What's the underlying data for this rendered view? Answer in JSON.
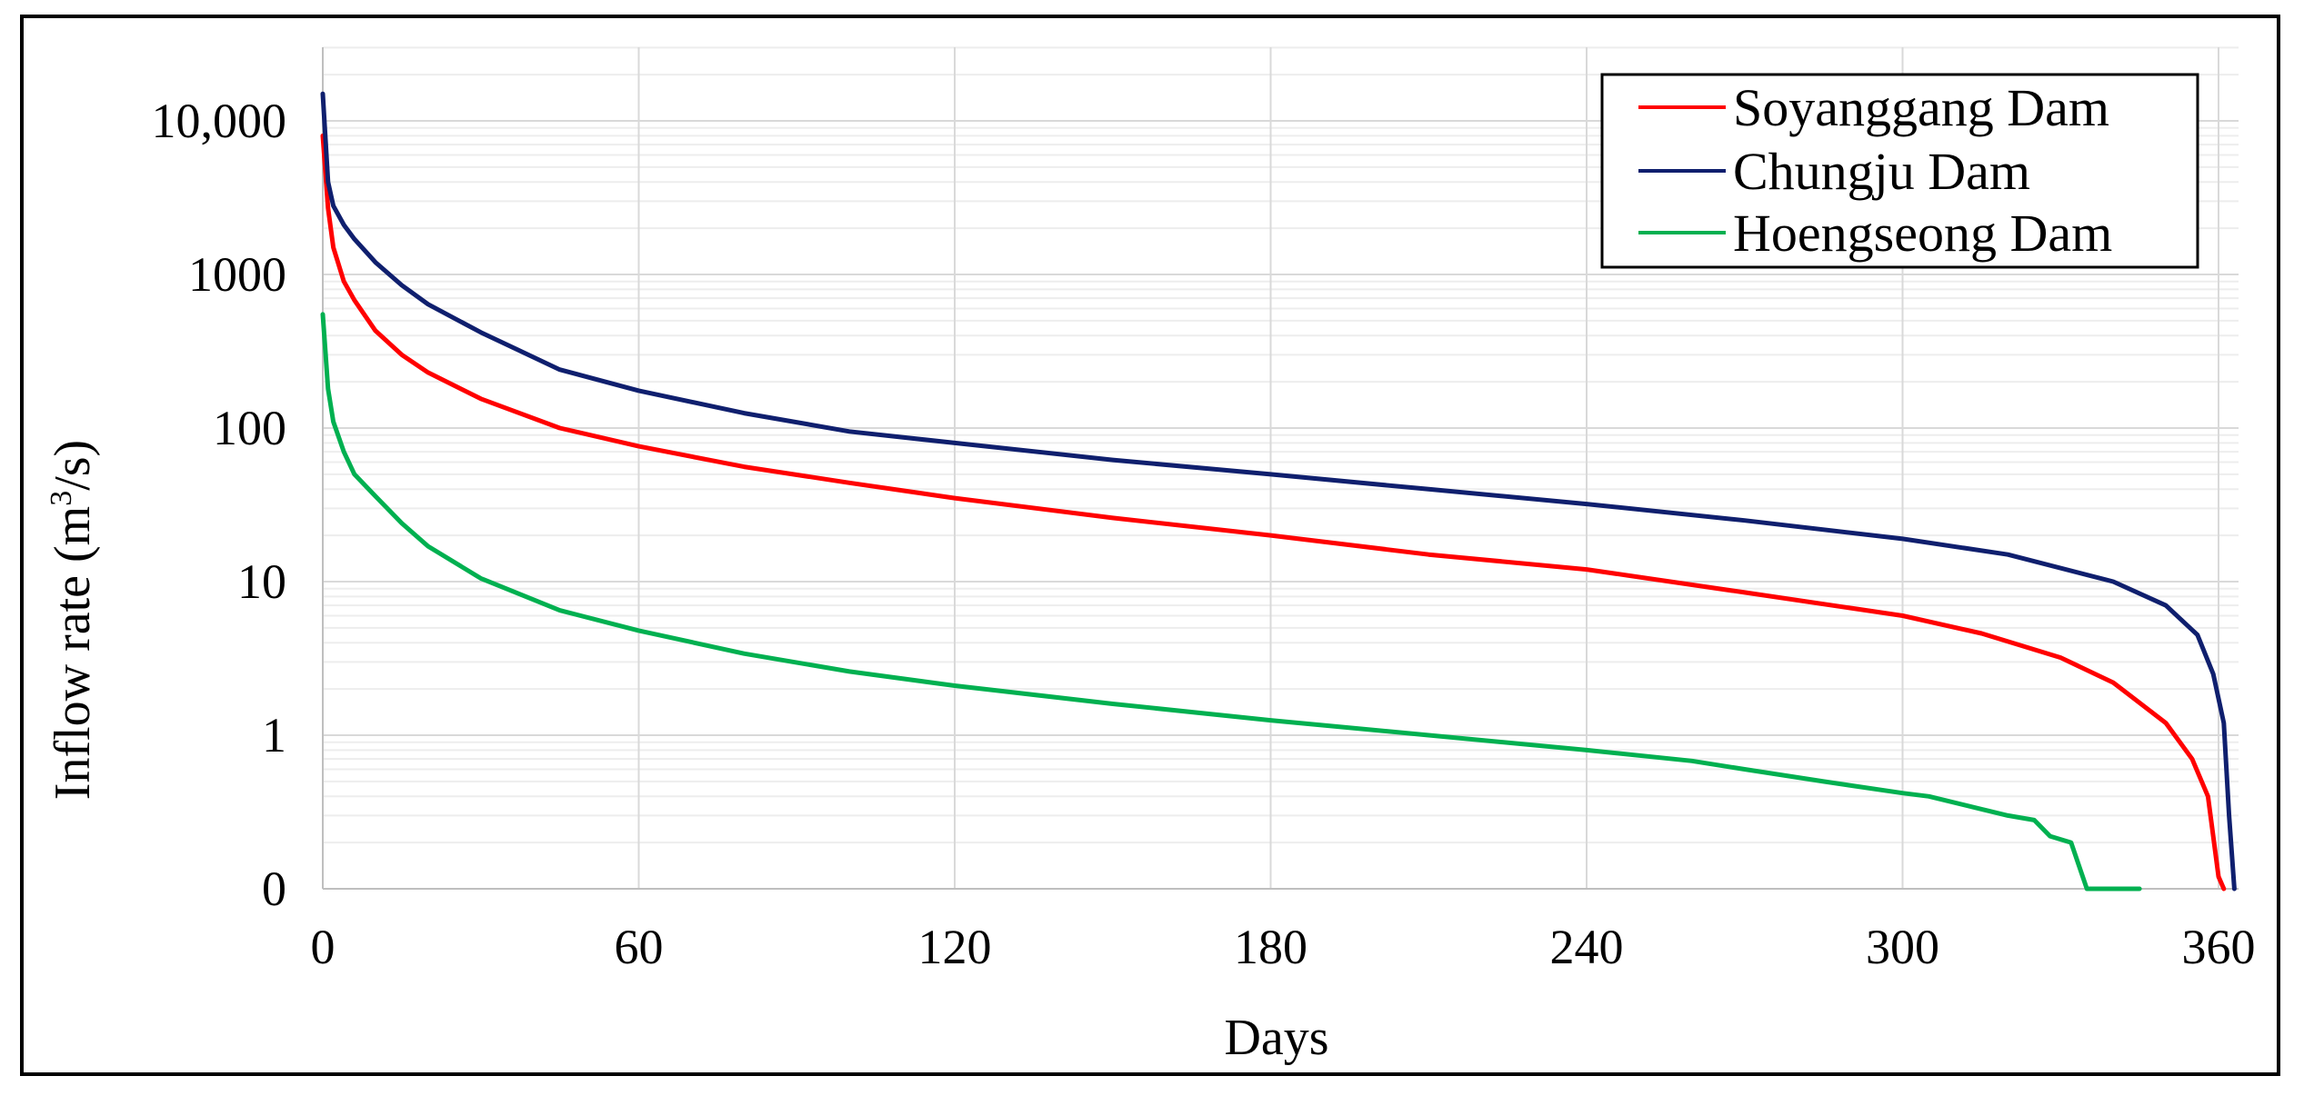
{
  "chart_data": {
    "type": "line",
    "title": "",
    "xlabel": "Days",
    "ylabel": "Inflow rate (m³/s)",
    "ylabel_parts": {
      "main": "Inflow rate (m",
      "sup": "3",
      "tail": "/s)"
    },
    "x_ticks": [
      "0",
      "60",
      "120",
      "180",
      "240",
      "300",
      "360"
    ],
    "y_tick_labels": [
      "0",
      "1",
      "10",
      "100",
      "1000",
      "10,000"
    ],
    "y_scale": "log",
    "grid": true,
    "legend_position": "top-right",
    "series": [
      {
        "name": "Soyanggang Dam",
        "color": "#ff0000",
        "x": [
          0,
          1,
          2,
          4,
          6,
          10,
          15,
          20,
          30,
          45,
          60,
          80,
          100,
          120,
          150,
          180,
          210,
          240,
          270,
          300,
          315,
          330,
          340,
          350,
          355,
          358,
          360,
          361
        ],
        "y": [
          8000,
          2700,
          1500,
          900,
          680,
          430,
          300,
          230,
          155,
          100,
          76,
          56,
          44,
          35,
          26,
          20,
          15,
          12,
          8.5,
          6,
          4.6,
          3.2,
          2.2,
          1.2,
          0.7,
          0.4,
          0.12,
          0.1
        ]
      },
      {
        "name": "Chungju Dam",
        "color": "#0f1f6e",
        "x": [
          0,
          1,
          2,
          4,
          6,
          10,
          15,
          20,
          30,
          45,
          60,
          80,
          100,
          120,
          150,
          180,
          210,
          240,
          270,
          300,
          320,
          340,
          350,
          356,
          359,
          361,
          362,
          363
        ],
        "y": [
          15000,
          4000,
          2800,
          2100,
          1700,
          1200,
          850,
          640,
          420,
          240,
          175,
          125,
          95,
          80,
          62,
          50,
          40,
          32,
          25,
          19,
          15,
          10,
          7,
          4.5,
          2.5,
          1.2,
          0.3,
          0.1
        ]
      },
      {
        "name": "Hoengseong Dam",
        "color": "#00b050",
        "x": [
          0,
          1,
          2,
          4,
          6,
          10,
          15,
          20,
          30,
          45,
          60,
          80,
          100,
          120,
          150,
          180,
          210,
          240,
          260,
          270,
          285,
          300,
          305,
          315,
          320,
          325,
          328,
          332,
          335,
          340,
          345
        ],
        "y": [
          550,
          180,
          110,
          70,
          50,
          36,
          24,
          17,
          10.5,
          6.5,
          4.8,
          3.4,
          2.6,
          2.1,
          1.6,
          1.25,
          1.0,
          0.8,
          0.68,
          0.6,
          0.5,
          0.42,
          0.4,
          0.33,
          0.3,
          0.28,
          0.22,
          0.2,
          0.1,
          0.1,
          0.1
        ]
      }
    ]
  }
}
